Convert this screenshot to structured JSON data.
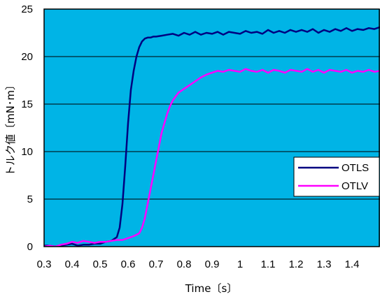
{
  "chart_data": {
    "type": "line",
    "xlabel": "Time〔s〕",
    "ylabel": "トルク値〔mN･m〕",
    "xlim": [
      0.3,
      1.5
    ],
    "ylim": [
      0,
      25
    ],
    "x_ticks": [
      "0.3",
      "0.4",
      "0.5",
      "0.6",
      "0.7",
      "0.8",
      "0.9",
      "1",
      "1.1",
      "1.2",
      "1.3",
      "1.4"
    ],
    "y_ticks": [
      "0",
      "5",
      "10",
      "15",
      "20",
      "25"
    ],
    "grid": "horizontal",
    "legend_position": "right",
    "plot_background": "#00b4e6",
    "series": [
      {
        "name": "OTLS",
        "color": "#000080",
        "x": [
          0.3,
          0.32,
          0.34,
          0.36,
          0.38,
          0.4,
          0.42,
          0.44,
          0.46,
          0.48,
          0.5,
          0.52,
          0.54,
          0.56,
          0.57,
          0.58,
          0.59,
          0.6,
          0.61,
          0.62,
          0.63,
          0.64,
          0.65,
          0.66,
          0.67,
          0.68,
          0.69,
          0.7,
          0.72,
          0.74,
          0.76,
          0.78,
          0.8,
          0.82,
          0.84,
          0.86,
          0.88,
          0.9,
          0.92,
          0.94,
          0.96,
          0.98,
          1.0,
          1.02,
          1.04,
          1.06,
          1.08,
          1.1,
          1.12,
          1.14,
          1.16,
          1.18,
          1.2,
          1.22,
          1.24,
          1.26,
          1.28,
          1.3,
          1.32,
          1.34,
          1.36,
          1.38,
          1.4,
          1.42,
          1.44,
          1.46,
          1.48,
          1.5
        ],
        "y": [
          0.1,
          0.1,
          0.0,
          0.1,
          0.2,
          0.3,
          0.1,
          0.2,
          0.2,
          0.3,
          0.3,
          0.5,
          0.6,
          1.0,
          2.0,
          4.5,
          8.5,
          13.0,
          16.5,
          18.5,
          20.0,
          21.0,
          21.6,
          21.9,
          22.0,
          22.0,
          22.1,
          22.1,
          22.2,
          22.3,
          22.4,
          22.2,
          22.5,
          22.3,
          22.6,
          22.3,
          22.5,
          22.4,
          22.6,
          22.3,
          22.6,
          22.5,
          22.4,
          22.7,
          22.5,
          22.6,
          22.4,
          22.8,
          22.5,
          22.7,
          22.5,
          22.8,
          22.6,
          22.8,
          22.6,
          22.9,
          22.5,
          22.8,
          22.6,
          22.9,
          22.7,
          23.0,
          22.7,
          22.9,
          22.8,
          23.0,
          22.9,
          23.1
        ]
      },
      {
        "name": "OTLV",
        "color": "#ff00ff",
        "x": [
          0.3,
          0.32,
          0.34,
          0.36,
          0.38,
          0.4,
          0.42,
          0.44,
          0.46,
          0.48,
          0.5,
          0.52,
          0.54,
          0.56,
          0.58,
          0.6,
          0.62,
          0.64,
          0.65,
          0.66,
          0.67,
          0.68,
          0.69,
          0.7,
          0.71,
          0.72,
          0.73,
          0.74,
          0.75,
          0.76,
          0.77,
          0.78,
          0.8,
          0.82,
          0.84,
          0.86,
          0.88,
          0.9,
          0.92,
          0.94,
          0.96,
          0.98,
          1.0,
          1.02,
          1.04,
          1.06,
          1.08,
          1.1,
          1.12,
          1.14,
          1.16,
          1.18,
          1.2,
          1.22,
          1.24,
          1.26,
          1.28,
          1.3,
          1.32,
          1.34,
          1.36,
          1.38,
          1.4,
          1.42,
          1.44,
          1.46,
          1.48,
          1.5
        ],
        "y": [
          0.0,
          0.1,
          0.0,
          0.2,
          0.3,
          0.5,
          0.4,
          0.6,
          0.5,
          0.4,
          0.5,
          0.5,
          0.6,
          0.7,
          0.7,
          0.9,
          1.1,
          1.4,
          2.0,
          3.0,
          4.5,
          6.0,
          7.5,
          9.0,
          10.5,
          12.0,
          13.0,
          14.0,
          14.8,
          15.4,
          15.8,
          16.2,
          16.6,
          17.0,
          17.4,
          17.8,
          18.1,
          18.3,
          18.5,
          18.4,
          18.6,
          18.5,
          18.4,
          18.7,
          18.5,
          18.4,
          18.6,
          18.3,
          18.6,
          18.5,
          18.3,
          18.6,
          18.5,
          18.4,
          18.7,
          18.4,
          18.6,
          18.3,
          18.6,
          18.5,
          18.4,
          18.6,
          18.3,
          18.5,
          18.4,
          18.6,
          18.4,
          18.5
        ]
      }
    ]
  }
}
